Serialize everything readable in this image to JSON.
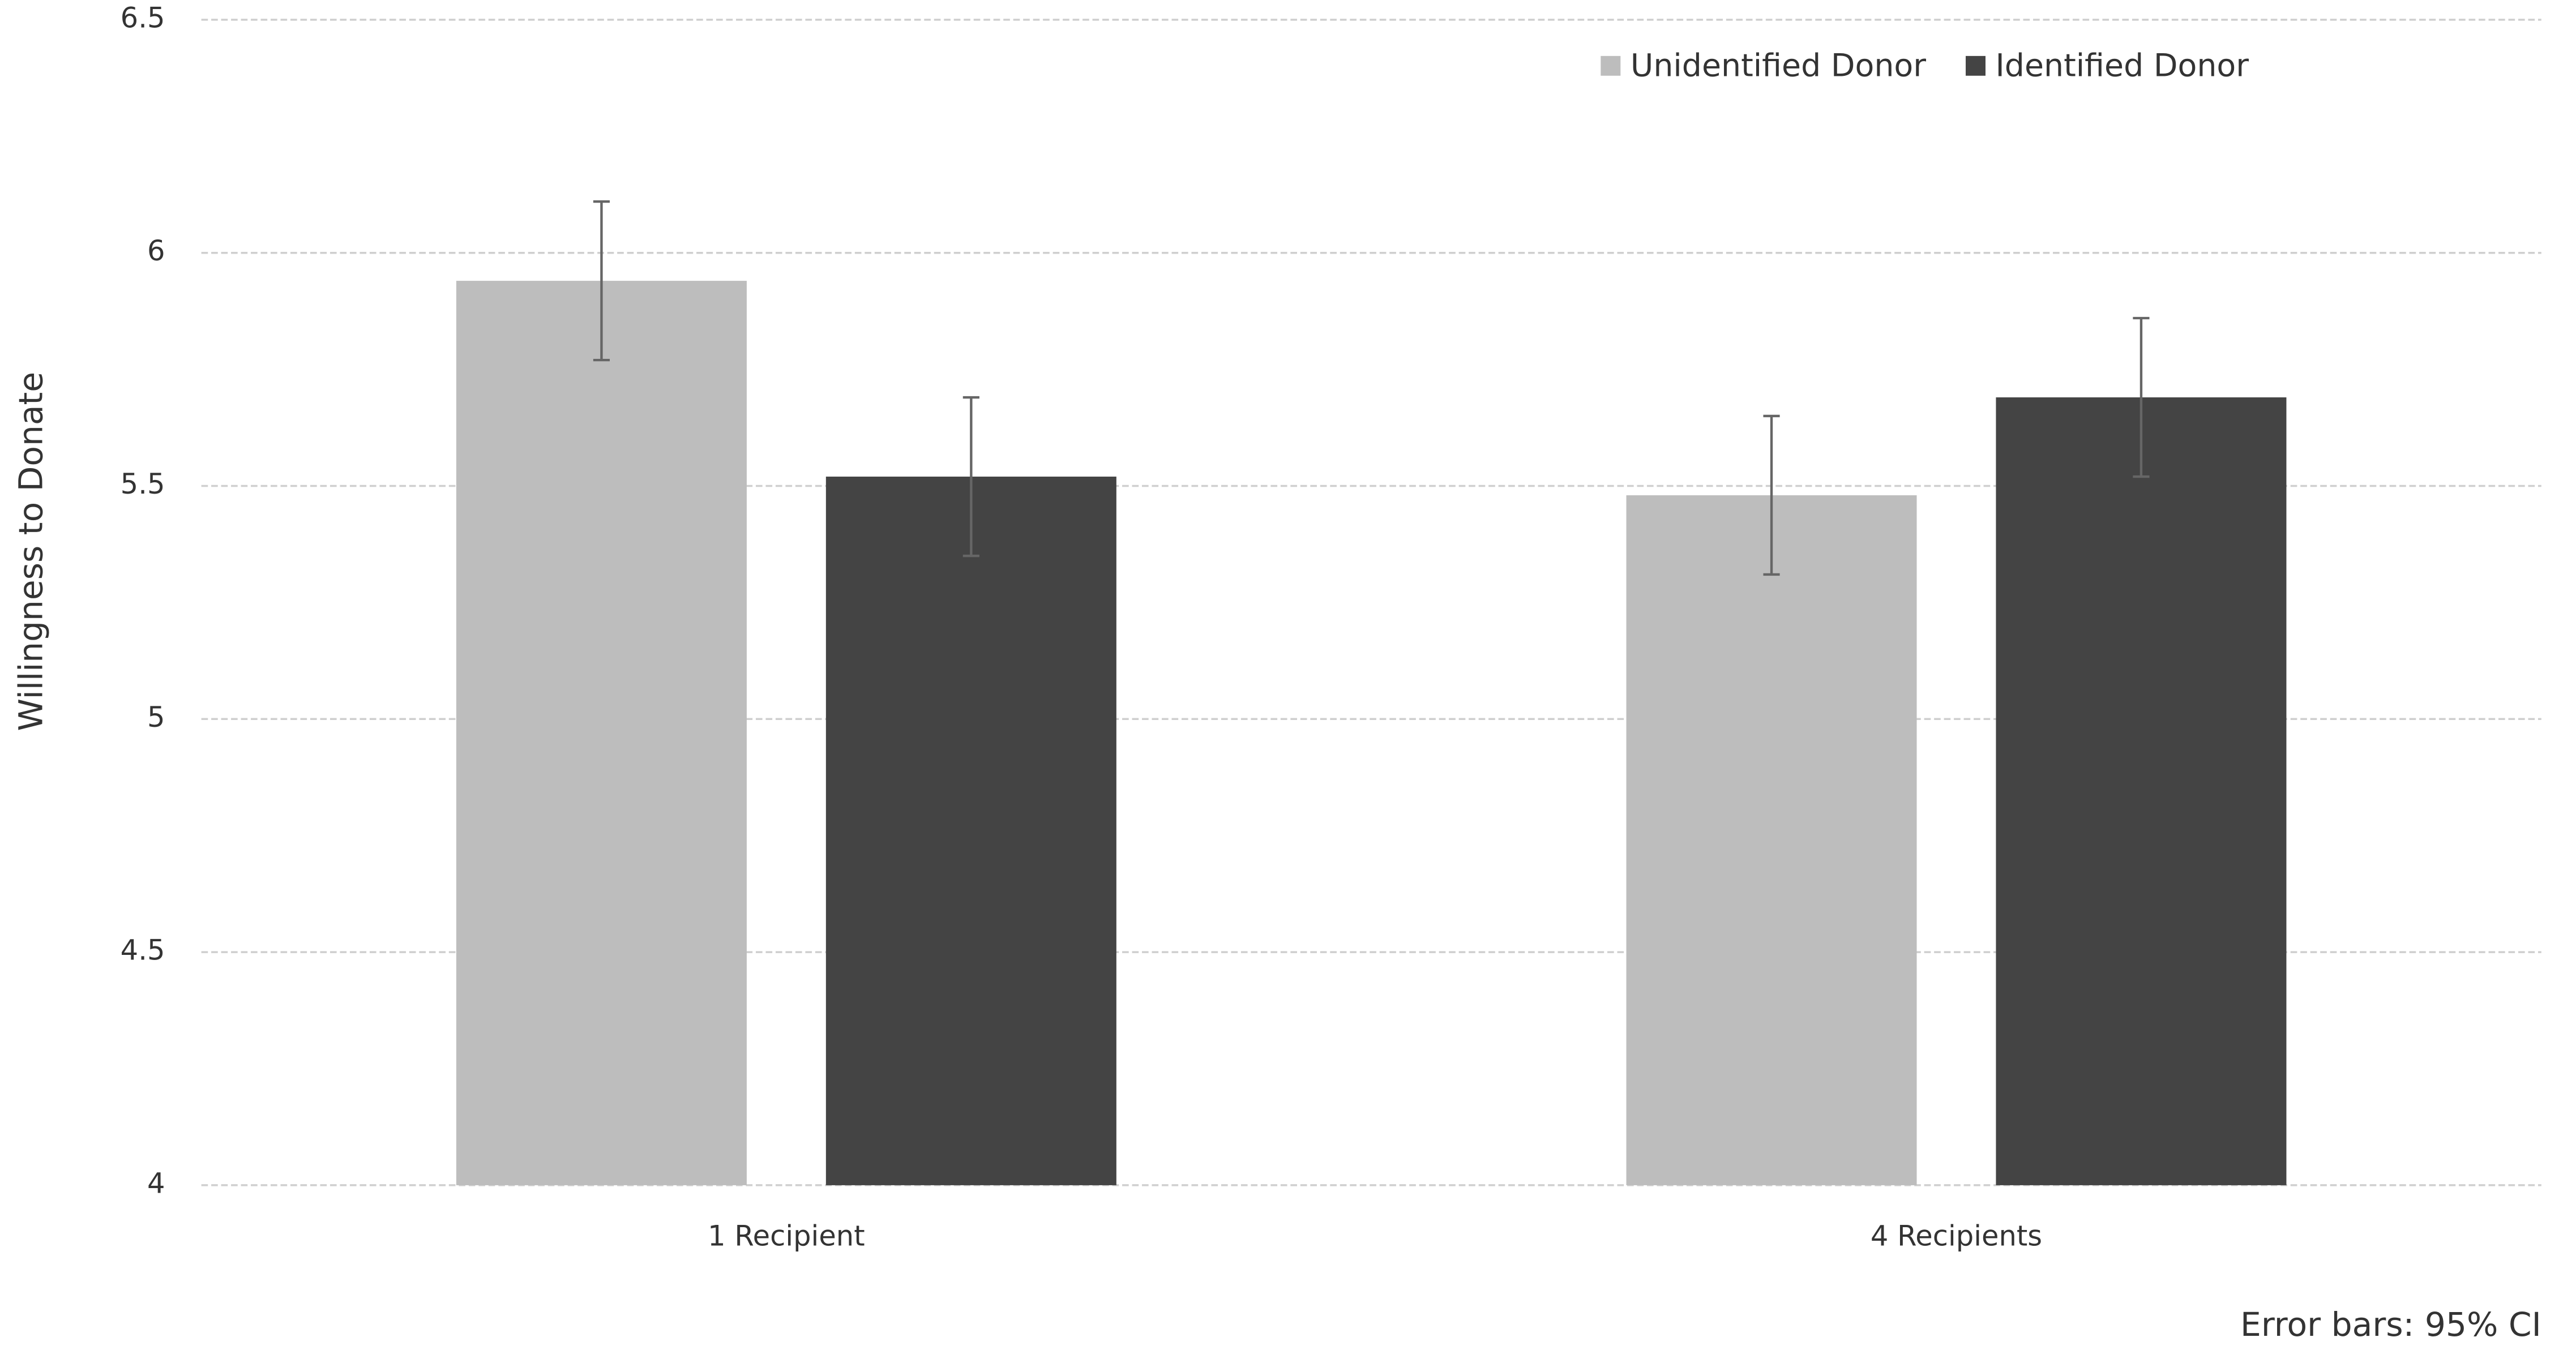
{
  "chart_data": {
    "type": "bar",
    "y_label": "Willingness to Donate",
    "annotation": "Error bars: 95% CI",
    "categories": [
      "1 Recipient",
      "4 Recipients"
    ],
    "series": [
      {
        "name": "Unidentified Donor",
        "color": "#bdbdbd",
        "values": [
          5.94,
          5.48
        ],
        "errors": [
          0.17,
          0.17
        ]
      },
      {
        "name": "Identified Donor",
        "color": "#444444",
        "values": [
          5.52,
          5.69
        ],
        "errors": [
          0.17,
          0.17
        ]
      }
    ],
    "ylim": [
      4,
      6.5
    ],
    "yticks": [
      4,
      4.5,
      5,
      5.5,
      6,
      6.5
    ],
    "grid": true,
    "legend": "top-right"
  }
}
